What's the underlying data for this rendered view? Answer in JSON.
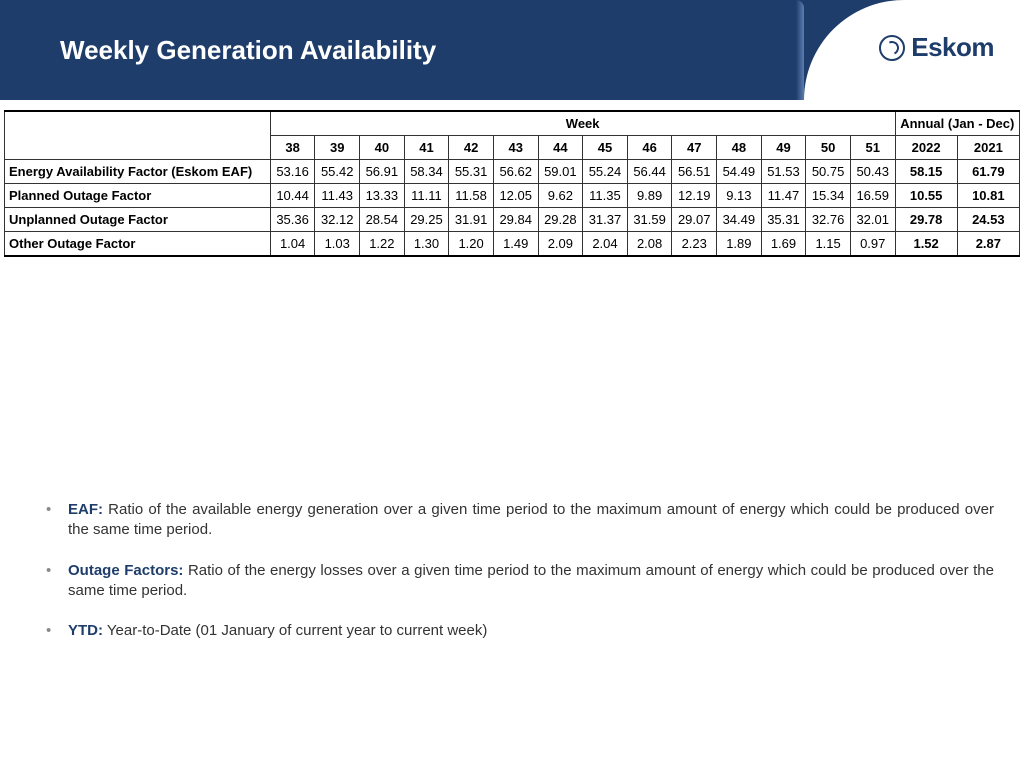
{
  "header": {
    "title": "Weekly Generation Availability",
    "brand": "Eskom",
    "bg_color": "#1e3d6b",
    "title_color": "#ffffff"
  },
  "table": {
    "week_header": "Week",
    "annual_header": "Annual (Jan - Dec)",
    "weeks": [
      "38",
      "39",
      "40",
      "41",
      "42",
      "43",
      "44",
      "45",
      "46",
      "47",
      "48",
      "49",
      "50",
      "51"
    ],
    "annual_cols": [
      "2022",
      "2021"
    ],
    "rows": [
      {
        "label": "Energy Availability Factor (Eskom EAF)",
        "vals": [
          "53.16",
          "55.42",
          "56.91",
          "58.34",
          "55.31",
          "56.62",
          "59.01",
          "55.24",
          "56.44",
          "56.51",
          "54.49",
          "51.53",
          "50.75",
          "50.43"
        ],
        "annual": [
          "58.15",
          "61.79"
        ]
      },
      {
        "label": "Planned Outage Factor",
        "vals": [
          "10.44",
          "11.43",
          "13.33",
          "11.11",
          "11.58",
          "12.05",
          "9.62",
          "11.35",
          "9.89",
          "12.19",
          "9.13",
          "11.47",
          "15.34",
          "16.59"
        ],
        "annual": [
          "10.55",
          "10.81"
        ]
      },
      {
        "label": "Unplanned Outage Factor",
        "vals": [
          "35.36",
          "32.12",
          "28.54",
          "29.25",
          "31.91",
          "29.84",
          "29.28",
          "31.37",
          "31.59",
          "29.07",
          "34.49",
          "35.31",
          "32.76",
          "32.01"
        ],
        "annual": [
          "29.78",
          "24.53"
        ]
      },
      {
        "label": "Other Outage Factor",
        "vals": [
          "1.04",
          "1.03",
          "1.22",
          "1.30",
          "1.20",
          "1.49",
          "2.09",
          "2.04",
          "2.08",
          "2.23",
          "1.89",
          "1.69",
          "1.15",
          "0.97"
        ],
        "annual": [
          "1.52",
          "2.87"
        ]
      }
    ],
    "border_color": "#333333",
    "font_size": 13
  },
  "definitions": [
    {
      "term": "EAF:",
      "text": " Ratio of the available energy generation over a given time period to the maximum amount of energy which could be produced over the same time period."
    },
    {
      "term": "Outage Factors:",
      "text": " Ratio of the energy losses over a given time period to the maximum amount of energy which could be produced over the same time period."
    },
    {
      "term": "YTD:",
      "text": " Year-to-Date (01 January of current year to current week)"
    }
  ],
  "colors": {
    "brand_blue": "#1e3d6b",
    "text_gray": "#333333",
    "bullet_gray": "#8a8a8a",
    "background": "#ffffff"
  }
}
